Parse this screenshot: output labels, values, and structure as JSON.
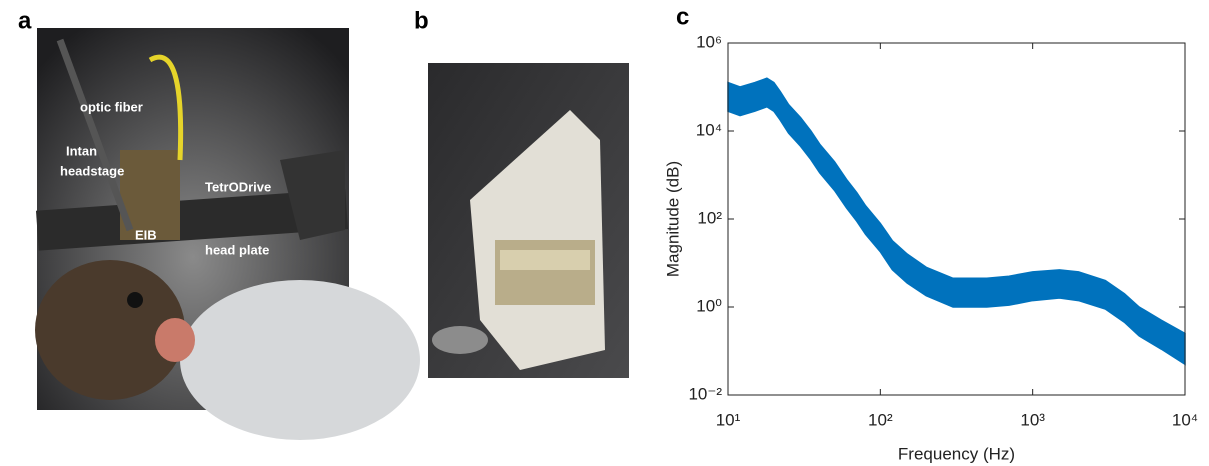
{
  "panels": {
    "a": {
      "label": "a",
      "annotations": [
        "optic fiber",
        "Intan",
        "headstage",
        "TetrODrive",
        "EIB",
        "head plate"
      ]
    },
    "b": {
      "label": "b"
    },
    "c": {
      "label": "c"
    }
  },
  "chart_data": {
    "type": "area",
    "color": "#0072bd",
    "xlabel": "Frequency (Hz)",
    "ylabel": "Magnitude (dB)",
    "xscale": "log",
    "yscale": "log",
    "xlim": [
      10,
      10000
    ],
    "ylim": [
      0.01,
      1000000
    ],
    "xticks": [
      {
        "value": 10,
        "label": "10¹"
      },
      {
        "value": 100,
        "label": "10²"
      },
      {
        "value": 1000,
        "label": "10³"
      },
      {
        "value": 10000,
        "label": "10⁴"
      }
    ],
    "yticks": [
      {
        "value": 0.01,
        "label": "10⁻²"
      },
      {
        "value": 1,
        "label": "10⁰"
      },
      {
        "value": 100,
        "label": "10²"
      },
      {
        "value": 10000,
        "label": "10⁴"
      },
      {
        "value": 1000000,
        "label": "10⁶"
      }
    ],
    "x": [
      10,
      12,
      15,
      18,
      20,
      22,
      25,
      30,
      35,
      40,
      50,
      60,
      70,
      80,
      100,
      120,
      150,
      200,
      300,
      500,
      700,
      1000,
      1500,
      2000,
      3000,
      4000,
      5000,
      7000,
      10000
    ],
    "upper": [
      126000,
      100000,
      126000,
      158000,
      126000,
      79400,
      39800,
      20000,
      10000,
      5010,
      2000,
      794,
      398,
      200,
      79,
      32,
      16,
      8,
      4.5,
      4.5,
      5,
      6.3,
      7,
      6.3,
      4,
      2,
      1,
      0.5,
      0.25
    ],
    "lower": [
      28200,
      22400,
      28200,
      35500,
      28200,
      17800,
      8910,
      4470,
      2240,
      1120,
      447,
      178,
      89,
      45,
      18,
      7,
      3.5,
      1.8,
      1.0,
      1.0,
      1.1,
      1.4,
      1.6,
      1.4,
      0.9,
      0.45,
      0.22,
      0.11,
      0.05
    ]
  }
}
